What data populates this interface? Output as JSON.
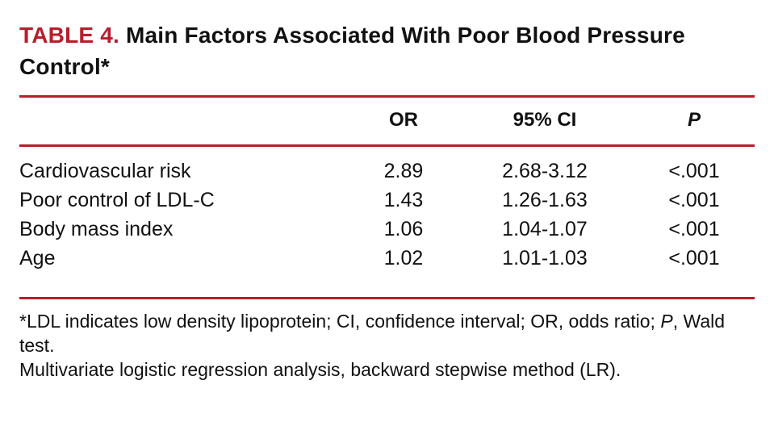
{
  "colors": {
    "accent_red": "#b81d2c",
    "text": "#111111",
    "background": "#ffffff"
  },
  "title": {
    "label": "TABLE 4.",
    "text": "Main Factors Associated With Poor Blood Pressure Control*"
  },
  "table": {
    "headers": {
      "factor": "",
      "or": "OR",
      "ci": "95% CI",
      "p": "P"
    },
    "rows": [
      {
        "factor": "Cardiovascular risk",
        "or": "2.89",
        "ci": "2.68-3.12",
        "p": "<.001"
      },
      {
        "factor": "Poor control of LDL-C",
        "or": "1.43",
        "ci": "1.26-1.63",
        "p": "<.001"
      },
      {
        "factor": "Body mass index",
        "or": "1.06",
        "ci": "1.04-1.07",
        "p": "<.001"
      },
      {
        "factor": "Age",
        "or": "1.02",
        "ci": "1.01-1.03",
        "p": "<.001"
      }
    ]
  },
  "footnotes": {
    "note1_part1": "*LDL indicates low density lipoprotein; CI, confidence interval; OR, odds ratio; ",
    "note1_italic": "P",
    "note1_part2": ", Wald test.",
    "note2": "Multivariate logistic regression analysis, backward stepwise method (LR)."
  }
}
